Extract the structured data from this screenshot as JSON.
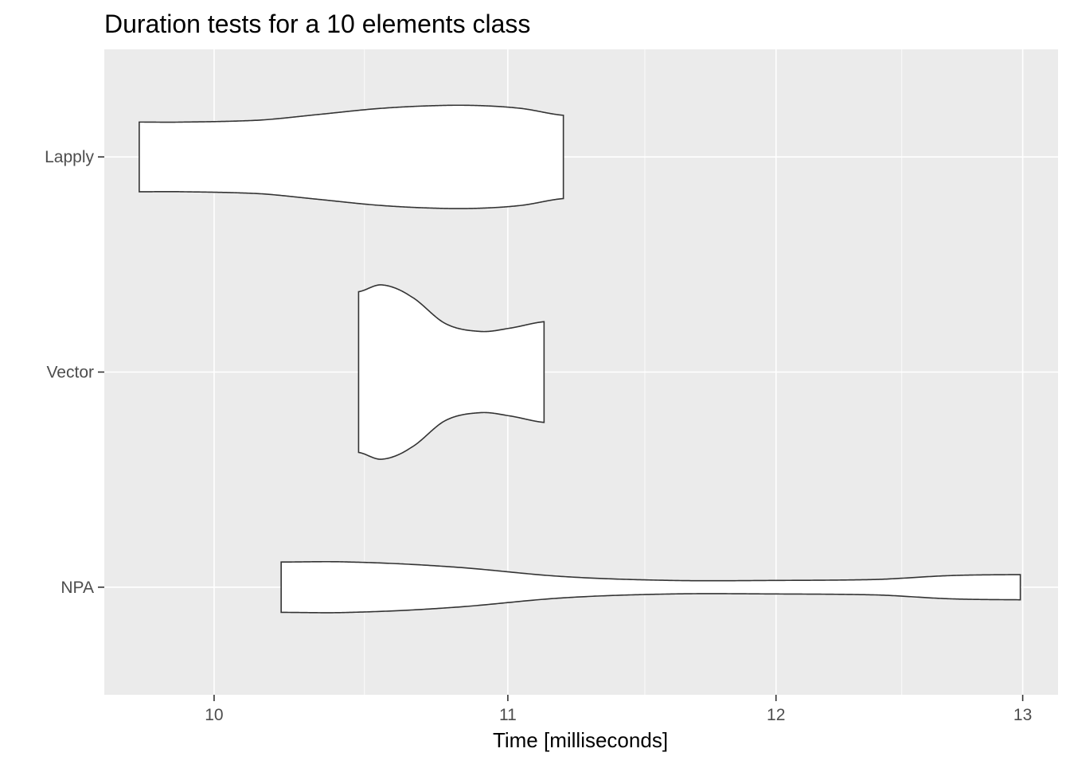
{
  "chart_data": {
    "type": "violin",
    "orientation": "horizontal",
    "title": "Duration tests for a  10  elements  class",
    "xlabel": "Time [milliseconds]",
    "ylabel": "",
    "x_scale": "log10",
    "xlim": [
      9.65,
      13.15
    ],
    "x_ticks": [
      10,
      11,
      12,
      13
    ],
    "x_tick_labels": [
      "10",
      "11",
      "12",
      "13"
    ],
    "x_minor_ticks": [
      10.5,
      11.5,
      12.5
    ],
    "categories": [
      "Lapply",
      "Vector",
      "NPA"
    ],
    "panel_background": "#ebebeb",
    "grid_color": "#ffffff",
    "violin_fill": "#ffffff",
    "violin_stroke": "#333333",
    "series": [
      {
        "category": "Lapply",
        "min": 9.76,
        "max": 11.2,
        "profile": [
          [
            9.76,
            0.36
          ],
          [
            9.9,
            0.36
          ],
          [
            10.15,
            0.38
          ],
          [
            10.35,
            0.44
          ],
          [
            10.55,
            0.5
          ],
          [
            10.75,
            0.53
          ],
          [
            10.9,
            0.53
          ],
          [
            11.05,
            0.5
          ],
          [
            11.2,
            0.43
          ]
        ]
      },
      {
        "category": "Vector",
        "min": 10.48,
        "max": 11.13,
        "profile": [
          [
            10.48,
            0.83
          ],
          [
            10.56,
            0.9
          ],
          [
            10.66,
            0.78
          ],
          [
            10.78,
            0.5
          ],
          [
            10.9,
            0.42
          ],
          [
            11.0,
            0.45
          ],
          [
            11.13,
            0.52
          ]
        ]
      },
      {
        "category": "NPA",
        "min": 10.22,
        "max": 12.99,
        "profile": [
          [
            10.22,
            0.26
          ],
          [
            10.45,
            0.26
          ],
          [
            10.8,
            0.21
          ],
          [
            11.2,
            0.11
          ],
          [
            11.6,
            0.07
          ],
          [
            12.0,
            0.07
          ],
          [
            12.4,
            0.08
          ],
          [
            12.7,
            0.12
          ],
          [
            12.99,
            0.13
          ]
        ]
      }
    ]
  }
}
